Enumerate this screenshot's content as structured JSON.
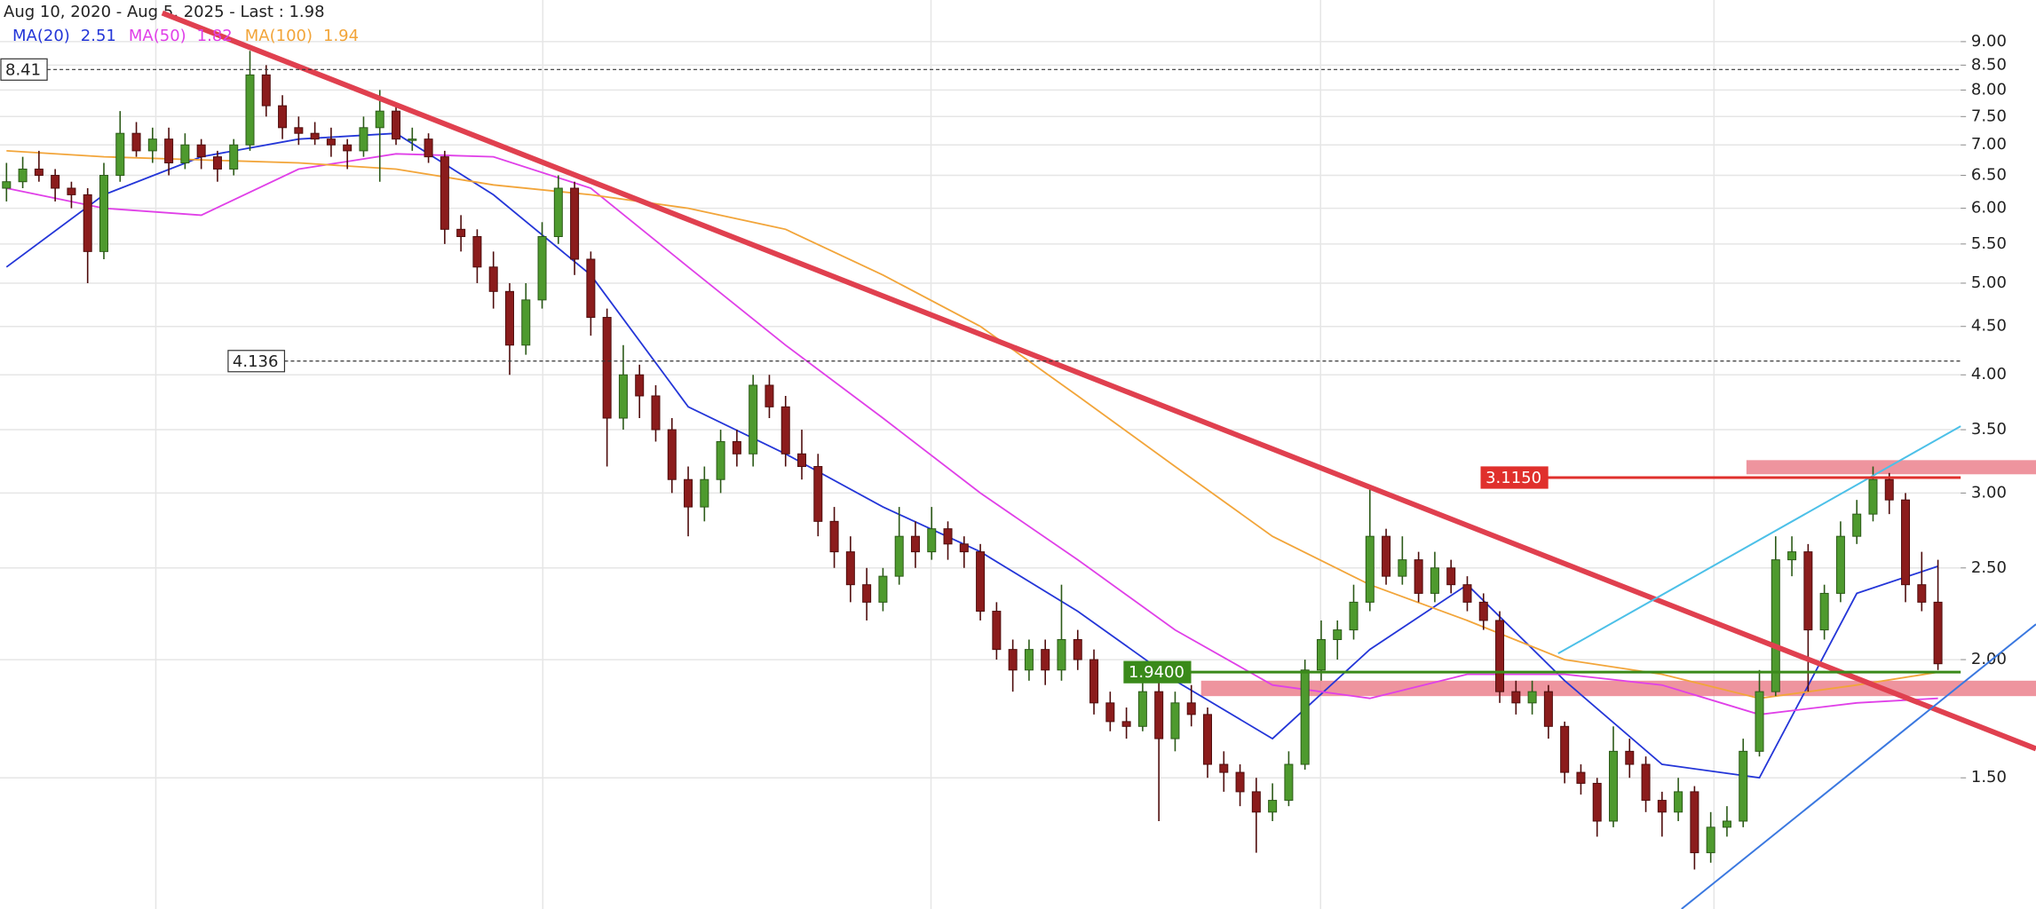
{
  "chart_data": {
    "type": "candlestick",
    "title": "Aug 10, 2020 - Aug 5, 2025 - Last : 1.98",
    "log_scale": true,
    "grid": true,
    "up_color": "#4e9a2e",
    "down_color": "#8b1c1c",
    "ylim": [
      1.09,
      9.96
    ],
    "yticks": [
      {
        "value": 1.5,
        "label": "1.50"
      },
      {
        "value": 2,
        "label": "2.00"
      },
      {
        "value": 2.5,
        "label": "2.50"
      },
      {
        "value": 3,
        "label": "3.00"
      },
      {
        "value": 3.5,
        "label": "3.50"
      },
      {
        "value": 4,
        "label": "4.00"
      },
      {
        "value": 4.5,
        "label": "4.50"
      },
      {
        "value": 5,
        "label": "5.00"
      },
      {
        "value": 5.5,
        "label": "5.50"
      },
      {
        "value": 6,
        "label": "6.00"
      },
      {
        "value": 6.5,
        "label": "6.50"
      },
      {
        "value": 7,
        "label": "7.00"
      },
      {
        "value": 7.5,
        "label": "7.50"
      },
      {
        "value": 8,
        "label": "8.00"
      },
      {
        "value": 8.5,
        "label": "8.50"
      },
      {
        "value": 9,
        "label": "9.00"
      }
    ],
    "candles": [
      [
        6.3,
        6.7,
        6.1,
        6.4
      ],
      [
        6.4,
        6.8,
        6.3,
        6.6
      ],
      [
        6.6,
        6.9,
        6.4,
        6.5
      ],
      [
        6.5,
        6.6,
        6.1,
        6.3
      ],
      [
        6.3,
        6.4,
        6.0,
        6.2
      ],
      [
        6.2,
        6.3,
        5.0,
        5.4
      ],
      [
        5.4,
        6.7,
        5.3,
        6.5
      ],
      [
        6.5,
        7.6,
        6.4,
        7.2
      ],
      [
        7.2,
        7.4,
        6.8,
        6.9
      ],
      [
        6.9,
        7.3,
        6.7,
        7.1
      ],
      [
        7.1,
        7.3,
        6.5,
        6.7
      ],
      [
        6.7,
        7.2,
        6.6,
        7.0
      ],
      [
        7.0,
        7.1,
        6.6,
        6.8
      ],
      [
        6.8,
        6.9,
        6.4,
        6.6
      ],
      [
        6.6,
        7.1,
        6.5,
        7.0
      ],
      [
        7.0,
        8.8,
        6.9,
        8.3
      ],
      [
        8.3,
        8.5,
        7.5,
        7.7
      ],
      [
        7.7,
        7.9,
        7.1,
        7.3
      ],
      [
        7.3,
        7.5,
        7.0,
        7.2
      ],
      [
        7.2,
        7.4,
        7.0,
        7.1
      ],
      [
        7.1,
        7.3,
        6.8,
        7.0
      ],
      [
        7.0,
        7.1,
        6.6,
        6.9
      ],
      [
        6.9,
        7.5,
        6.8,
        7.3
      ],
      [
        7.3,
        8.0,
        6.4,
        7.6
      ],
      [
        7.6,
        7.7,
        7.0,
        7.1
      ],
      [
        7.1,
        7.3,
        6.9,
        7.1
      ],
      [
        7.1,
        7.2,
        6.7,
        6.8
      ],
      [
        6.8,
        6.9,
        5.5,
        5.7
      ],
      [
        5.7,
        5.9,
        5.4,
        5.6
      ],
      [
        5.6,
        5.7,
        5.0,
        5.2
      ],
      [
        5.2,
        5.4,
        4.7,
        4.9
      ],
      [
        4.9,
        5.0,
        4.0,
        4.3
      ],
      [
        4.3,
        5.0,
        4.2,
        4.8
      ],
      [
        4.8,
        5.8,
        4.7,
        5.6
      ],
      [
        5.6,
        6.5,
        5.5,
        6.3
      ],
      [
        6.3,
        6.4,
        5.1,
        5.3
      ],
      [
        5.3,
        5.4,
        4.4,
        4.6
      ],
      [
        4.6,
        4.7,
        3.2,
        3.6
      ],
      [
        3.6,
        4.3,
        3.5,
        4.0
      ],
      [
        4.0,
        4.1,
        3.6,
        3.8
      ],
      [
        3.8,
        3.9,
        3.4,
        3.5
      ],
      [
        3.5,
        3.6,
        3.0,
        3.1
      ],
      [
        3.1,
        3.2,
        2.7,
        2.9
      ],
      [
        2.9,
        3.2,
        2.8,
        3.1
      ],
      [
        3.1,
        3.5,
        3.0,
        3.4
      ],
      [
        3.4,
        3.5,
        3.2,
        3.3
      ],
      [
        3.3,
        4.0,
        3.2,
        3.9
      ],
      [
        3.9,
        4.0,
        3.6,
        3.7
      ],
      [
        3.7,
        3.8,
        3.2,
        3.3
      ],
      [
        3.3,
        3.5,
        3.1,
        3.2
      ],
      [
        3.2,
        3.3,
        2.7,
        2.8
      ],
      [
        2.8,
        2.9,
        2.5,
        2.6
      ],
      [
        2.6,
        2.7,
        2.3,
        2.4
      ],
      [
        2.4,
        2.5,
        2.2,
        2.3
      ],
      [
        2.3,
        2.5,
        2.25,
        2.45
      ],
      [
        2.45,
        2.9,
        2.4,
        2.7
      ],
      [
        2.7,
        2.8,
        2.5,
        2.6
      ],
      [
        2.6,
        2.9,
        2.55,
        2.75
      ],
      [
        2.75,
        2.8,
        2.55,
        2.65
      ],
      [
        2.65,
        2.7,
        2.5,
        2.6
      ],
      [
        2.6,
        2.65,
        2.2,
        2.25
      ],
      [
        2.25,
        2.3,
        2.0,
        2.05
      ],
      [
        2.05,
        2.1,
        1.85,
        1.95
      ],
      [
        1.95,
        2.1,
        1.9,
        2.05
      ],
      [
        2.05,
        2.1,
        1.88,
        1.95
      ],
      [
        1.95,
        2.4,
        1.9,
        2.1
      ],
      [
        2.1,
        2.15,
        1.95,
        2.0
      ],
      [
        2.0,
        2.05,
        1.75,
        1.8
      ],
      [
        1.8,
        1.85,
        1.68,
        1.72
      ],
      [
        1.72,
        1.78,
        1.65,
        1.7
      ],
      [
        1.7,
        1.9,
        1.68,
        1.85
      ],
      [
        1.85,
        1.9,
        1.35,
        1.65
      ],
      [
        1.65,
        1.85,
        1.6,
        1.8
      ],
      [
        1.8,
        1.88,
        1.7,
        1.75
      ],
      [
        1.75,
        1.78,
        1.5,
        1.55
      ],
      [
        1.55,
        1.6,
        1.45,
        1.52
      ],
      [
        1.52,
        1.55,
        1.4,
        1.45
      ],
      [
        1.45,
        1.5,
        1.25,
        1.38
      ],
      [
        1.38,
        1.48,
        1.35,
        1.42
      ],
      [
        1.42,
        1.6,
        1.4,
        1.55
      ],
      [
        1.55,
        2.0,
        1.53,
        1.95
      ],
      [
        1.95,
        2.2,
        1.9,
        2.1
      ],
      [
        2.1,
        2.2,
        2.0,
        2.15
      ],
      [
        2.15,
        2.4,
        2.1,
        2.3
      ],
      [
        2.3,
        3.05,
        2.25,
        2.7
      ],
      [
        2.7,
        2.75,
        2.4,
        2.45
      ],
      [
        2.45,
        2.7,
        2.4,
        2.55
      ],
      [
        2.55,
        2.6,
        2.3,
        2.35
      ],
      [
        2.35,
        2.6,
        2.3,
        2.5
      ],
      [
        2.5,
        2.55,
        2.35,
        2.4
      ],
      [
        2.4,
        2.45,
        2.25,
        2.3
      ],
      [
        2.3,
        2.35,
        2.15,
        2.2
      ],
      [
        2.2,
        2.25,
        1.8,
        1.85
      ],
      [
        1.85,
        1.9,
        1.75,
        1.8
      ],
      [
        1.8,
        1.9,
        1.75,
        1.85
      ],
      [
        1.85,
        1.88,
        1.65,
        1.7
      ],
      [
        1.7,
        1.72,
        1.48,
        1.52
      ],
      [
        1.52,
        1.55,
        1.44,
        1.48
      ],
      [
        1.48,
        1.5,
        1.3,
        1.35
      ],
      [
        1.35,
        1.7,
        1.33,
        1.6
      ],
      [
        1.6,
        1.65,
        1.5,
        1.55
      ],
      [
        1.55,
        1.58,
        1.38,
        1.42
      ],
      [
        1.42,
        1.45,
        1.3,
        1.38
      ],
      [
        1.38,
        1.5,
        1.35,
        1.45
      ],
      [
        1.45,
        1.47,
        1.2,
        1.25
      ],
      [
        1.25,
        1.38,
        1.22,
        1.33
      ],
      [
        1.33,
        1.4,
        1.3,
        1.35
      ],
      [
        1.35,
        1.65,
        1.33,
        1.6
      ],
      [
        1.6,
        1.95,
        1.58,
        1.85
      ],
      [
        1.85,
        2.7,
        1.83,
        2.55
      ],
      [
        2.55,
        2.7,
        2.45,
        2.6
      ],
      [
        2.6,
        2.65,
        1.85,
        2.15
      ],
      [
        2.15,
        2.4,
        2.1,
        2.35
      ],
      [
        2.35,
        2.8,
        2.3,
        2.7
      ],
      [
        2.7,
        2.95,
        2.65,
        2.85
      ],
      [
        2.85,
        3.2,
        2.8,
        3.1
      ],
      [
        3.1,
        3.15,
        2.85,
        2.95
      ],
      [
        2.95,
        3.0,
        2.3,
        2.4
      ],
      [
        2.4,
        2.6,
        2.25,
        2.3
      ],
      [
        2.3,
        2.55,
        1.95,
        1.98
      ]
    ],
    "ma_x": [
      0,
      6,
      12,
      18,
      24,
      30,
      36,
      42,
      48,
      54,
      60,
      66,
      72,
      78,
      84,
      90,
      96,
      102,
      108,
      114,
      119
    ],
    "series": [
      {
        "name": "MA(20)",
        "value_label": "2.51",
        "color": "#2436d8",
        "values": [
          5.2,
          6.2,
          6.8,
          7.1,
          7.2,
          6.2,
          5.1,
          3.7,
          3.3,
          2.9,
          2.6,
          2.25,
          1.9,
          1.65,
          2.05,
          2.4,
          1.9,
          1.55,
          1.5,
          2.35,
          2.51
        ]
      },
      {
        "name": "MA(50)",
        "value_label": "1.82",
        "color": "#e040e8",
        "values": [
          6.3,
          6.0,
          5.9,
          6.6,
          6.85,
          6.8,
          6.3,
          5.2,
          4.3,
          3.6,
          3.0,
          2.55,
          2.15,
          1.88,
          1.82,
          1.93,
          1.93,
          1.88,
          1.75,
          1.8,
          1.82
        ]
      },
      {
        "name": "MA(100)",
        "value_label": "1.94",
        "color": "#f2a53a",
        "values": [
          6.9,
          6.8,
          6.75,
          6.7,
          6.6,
          6.35,
          6.2,
          6.0,
          5.7,
          5.1,
          4.5,
          3.8,
          3.2,
          2.7,
          2.4,
          2.2,
          2.0,
          1.93,
          1.82,
          1.88,
          1.94
        ]
      }
    ],
    "levels": [
      {
        "value": 8.41,
        "label": "8.41",
        "color": "#333333",
        "dashed": true
      },
      {
        "value": 4.136,
        "label": "4.136",
        "color": "#333333",
        "dashed": true
      },
      {
        "value": 1.94,
        "label": "1.9400",
        "color": "#3a8a1a",
        "dashed": false
      },
      {
        "value": 3.115,
        "label": "3.1150",
        "color": "#e0302c",
        "dashed": false
      }
    ],
    "zones": [
      {
        "from": 1.83,
        "to": 1.9,
        "color": "#e8707e"
      },
      {
        "from": 3.14,
        "to": 3.25,
        "color": "#e8707e"
      }
    ],
    "trendlines": [
      {
        "color": "#e0404f",
        "points": [
          [
            9.6,
            9.65
          ],
          [
            125.04,
            1.61
          ]
        ]
      },
      {
        "color": "#4cc0e8",
        "points": [
          [
            95.6,
            2.03
          ],
          [
            120.4,
            3.53
          ]
        ]
      },
      {
        "color": "#3a78e0",
        "points": [
          [
            103.2,
            1.09
          ],
          [
            125.04,
            2.18
          ]
        ]
      }
    ]
  }
}
